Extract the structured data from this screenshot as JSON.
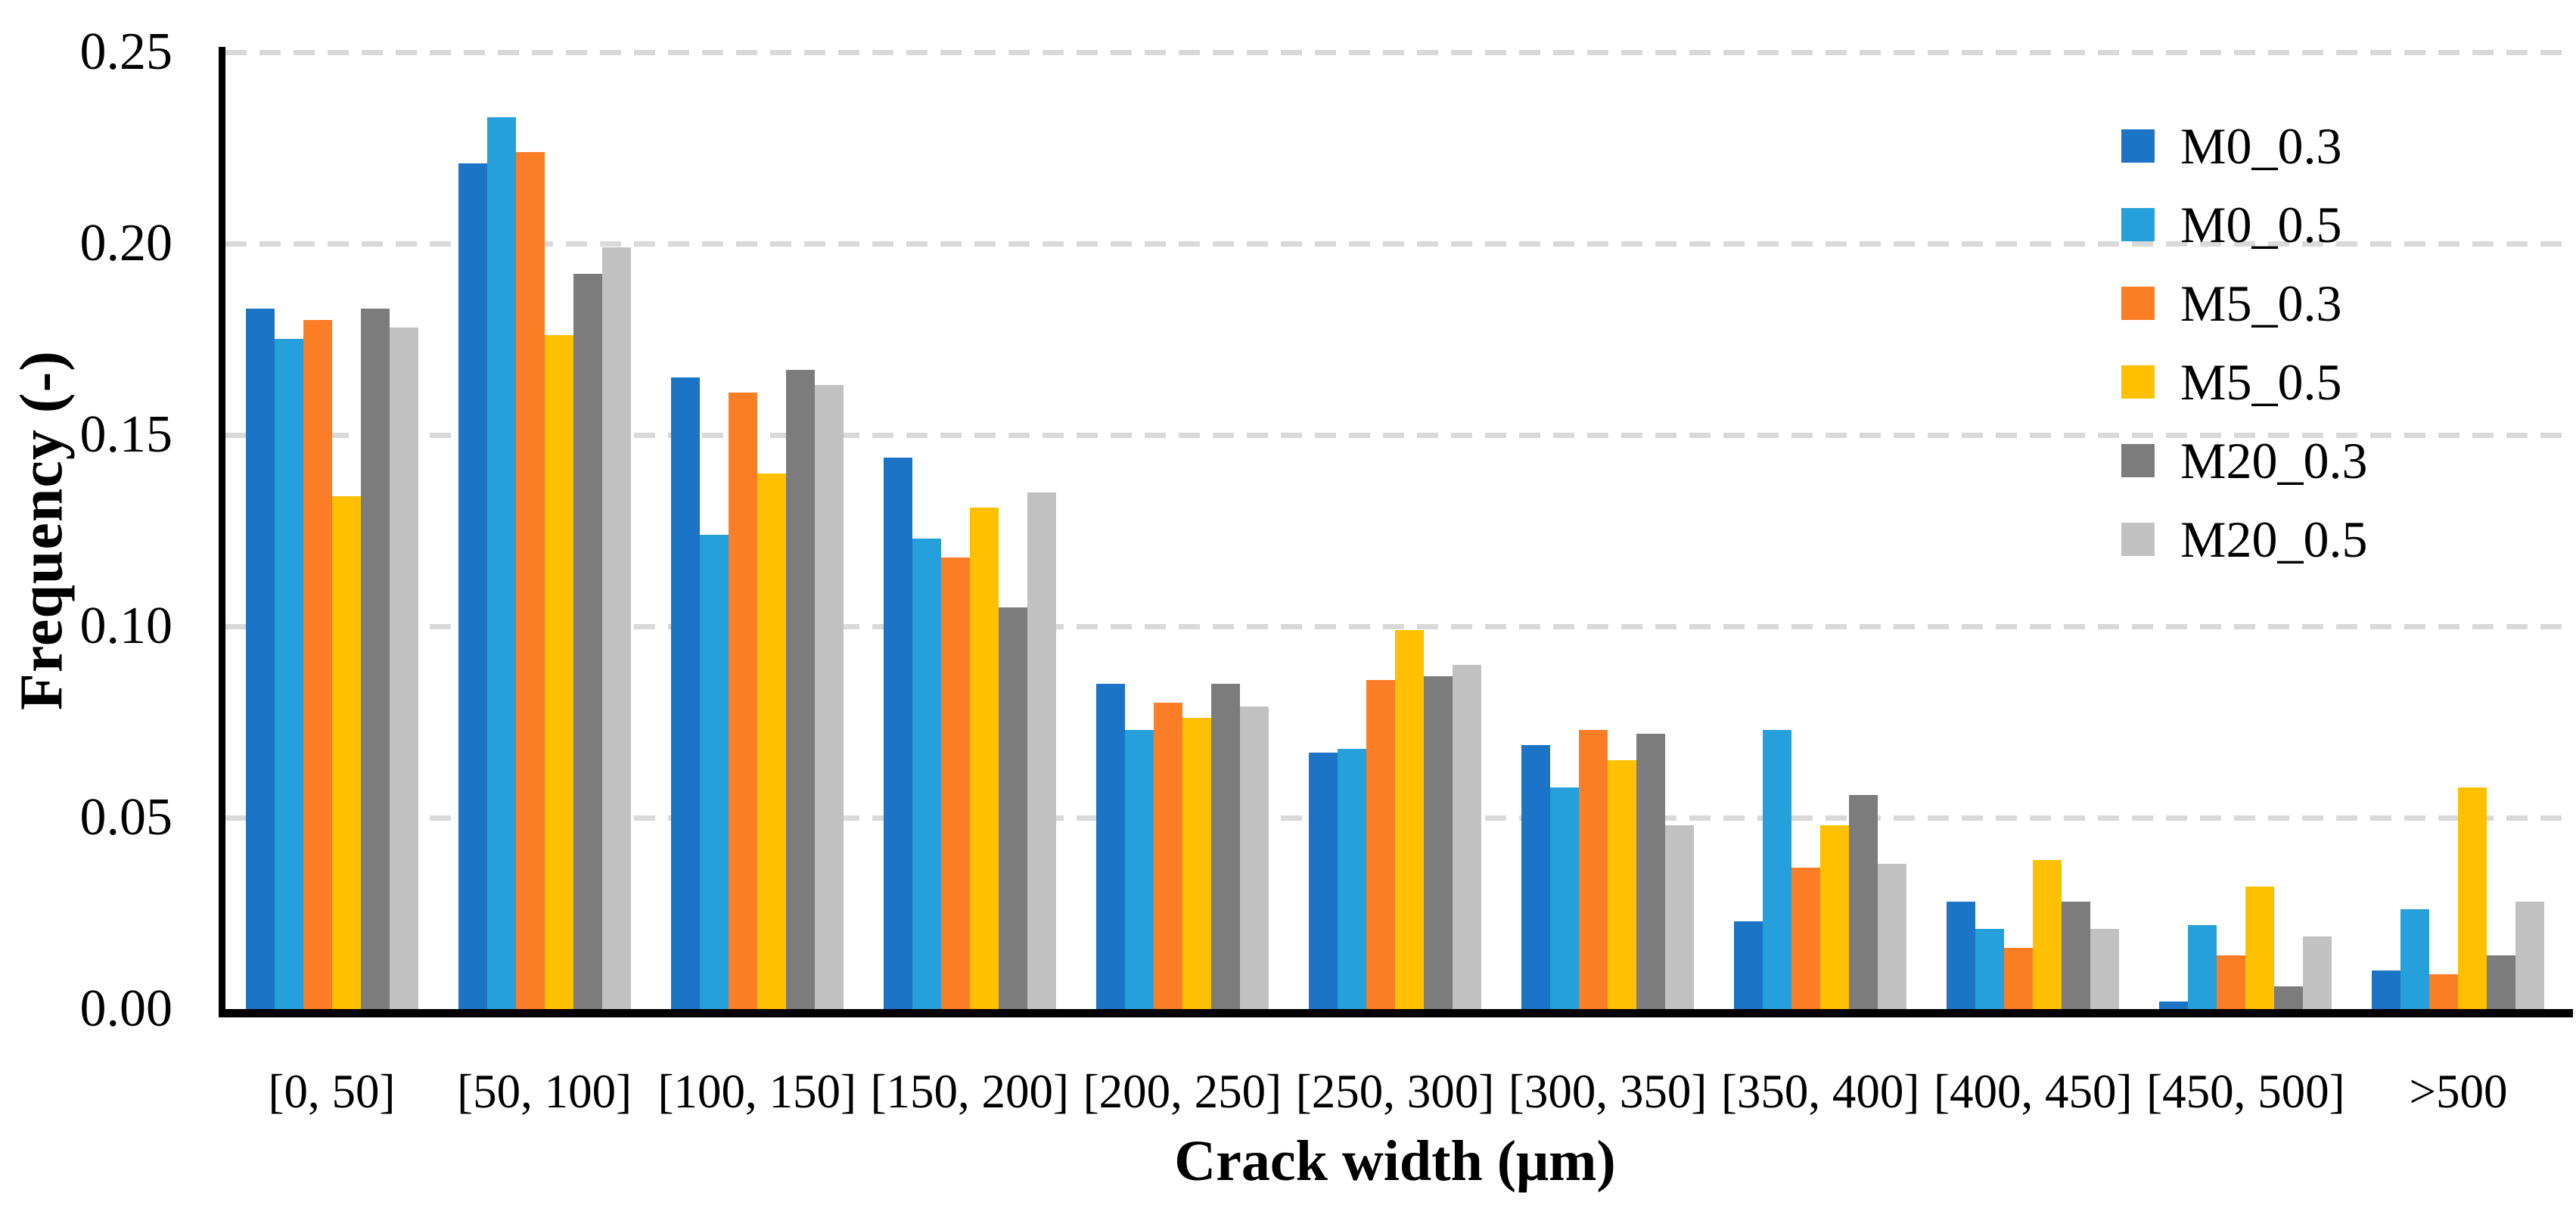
{
  "figure": {
    "background": "#ffffff",
    "y_axis": {
      "title": "Frequency (-)",
      "tick_labels": [
        "0.00",
        "0.05",
        "0.10",
        "0.15",
        "0.20",
        "0.25"
      ]
    },
    "x_axis": {
      "title": "Crack width (μm)"
    },
    "legend": {
      "items": [
        "M0_0.3",
        "M0_0.5",
        "M5_0.3",
        "M5_0.5",
        "M20_0.3",
        "M20_0.5"
      ]
    }
  },
  "chart_data": {
    "type": "bar",
    "title": "",
    "xlabel": "Crack width (μm)",
    "ylabel": "Frequency (-)",
    "ylim": [
      0,
      0.25
    ],
    "ytick_step": 0.05,
    "grid": "horizontal-dashed",
    "gridline_color": "#d9d9d9",
    "legend_position": "inside-top-right",
    "categories": [
      "[0, 50]",
      "[50, 100]",
      "[100, 150]",
      "[150, 200]",
      "[200, 250]",
      "[250, 300]",
      "[300, 350]",
      "[350, 400]",
      "[400, 450]",
      "[450, 500]",
      ">500"
    ],
    "series": [
      {
        "name": "M0_0.3",
        "color": "#1B74C5",
        "values": [
          0.183,
          0.221,
          0.165,
          0.144,
          0.085,
          0.067,
          0.069,
          0.023,
          0.028,
          0.002,
          0.01
        ]
      },
      {
        "name": "M0_0.5",
        "color": "#26A0DA",
        "values": [
          0.175,
          0.233,
          0.124,
          0.123,
          0.073,
          0.068,
          0.058,
          0.073,
          0.021,
          0.022,
          0.026
        ]
      },
      {
        "name": "M5_0.3",
        "color": "#FB7D26",
        "values": [
          0.18,
          0.224,
          0.161,
          0.118,
          0.08,
          0.086,
          0.073,
          0.037,
          0.016,
          0.014,
          0.009
        ]
      },
      {
        "name": "M5_0.5",
        "color": "#FFC002",
        "values": [
          0.134,
          0.176,
          0.14,
          0.131,
          0.076,
          0.099,
          0.065,
          0.048,
          0.039,
          0.032,
          0.058
        ]
      },
      {
        "name": "M20_0.3",
        "color": "#7C7C7C",
        "values": [
          0.183,
          0.192,
          0.167,
          0.105,
          0.085,
          0.087,
          0.072,
          0.056,
          0.028,
          0.006,
          0.014
        ]
      },
      {
        "name": "M20_0.5",
        "color": "#C1C1C1",
        "values": [
          0.178,
          0.199,
          0.163,
          0.135,
          0.079,
          0.09,
          0.048,
          0.038,
          0.021,
          0.019,
          0.028
        ]
      }
    ]
  }
}
